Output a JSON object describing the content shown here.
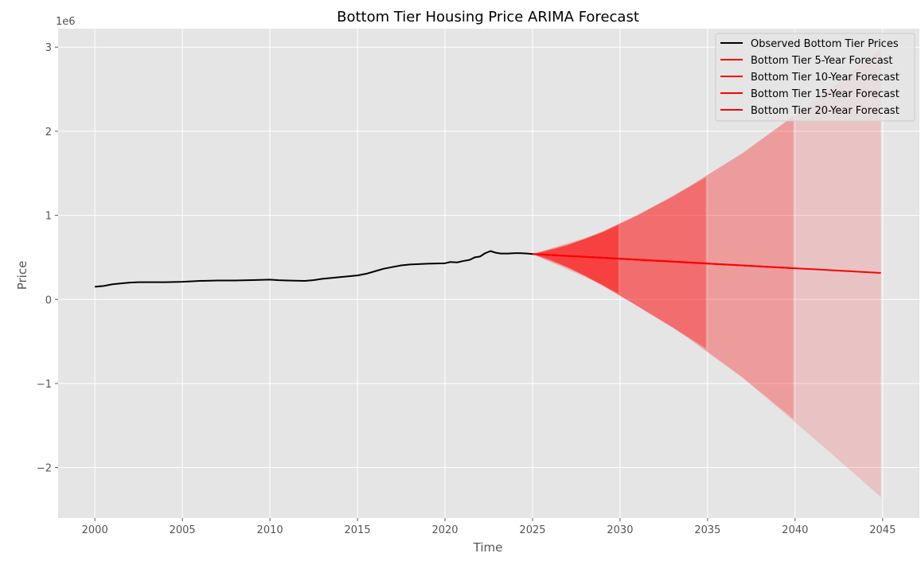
{
  "chart_data": {
    "type": "line",
    "title": "Bottom Tier Housing Price ARIMA Forecast",
    "xlabel": "Time",
    "ylabel": "Price",
    "y_offset_label": "1e6",
    "xlim": [
      1997.9,
      2047.1
    ],
    "ylim": [
      -2.6,
      3.22
    ],
    "x_ticks": [
      2000,
      2005,
      2010,
      2015,
      2020,
      2025,
      2030,
      2035,
      2040,
      2045
    ],
    "y_ticks": [
      -2,
      -1,
      0,
      1,
      2,
      3
    ],
    "y_tick_labels": [
      "−2",
      "−1",
      "0",
      "1",
      "2",
      "3"
    ],
    "grid": true,
    "legend_position": "top-right",
    "colors": {
      "background": "#e5e5e5",
      "grid": "#ffffff",
      "observed": "#000000",
      "forecast": "#ff0000",
      "band": "#ff0000"
    },
    "observed": {
      "name": "Observed Bottom Tier Prices",
      "x": [
        2000,
        2000.5,
        2001,
        2001.5,
        2002,
        2002.5,
        2003,
        2004,
        2005,
        2006,
        2007,
        2008,
        2009,
        2010,
        2010.5,
        2011,
        2012,
        2012.5,
        2013,
        2014,
        2015,
        2015.5,
        2016,
        2016.5,
        2017,
        2017.5,
        2018,
        2019,
        2020,
        2020.3,
        2020.7,
        2021,
        2021.4,
        2021.7,
        2022,
        2022.3,
        2022.6,
        2022.9,
        2023.2,
        2023.6,
        2024,
        2024.3,
        2024.7,
        2025
      ],
      "y": [
        0.15,
        0.16,
        0.18,
        0.19,
        0.2,
        0.205,
        0.205,
        0.205,
        0.21,
        0.22,
        0.225,
        0.225,
        0.23,
        0.235,
        0.228,
        0.225,
        0.22,
        0.23,
        0.245,
        0.265,
        0.285,
        0.305,
        0.335,
        0.365,
        0.385,
        0.405,
        0.415,
        0.425,
        0.43,
        0.445,
        0.44,
        0.455,
        0.47,
        0.5,
        0.51,
        0.55,
        0.575,
        0.555,
        0.545,
        0.545,
        0.55,
        0.55,
        0.545,
        0.54
      ]
    },
    "forecasts": [
      {
        "name": "Bottom Tier 5-Year Forecast",
        "x": [
          2025,
          2029.9
        ],
        "y": [
          0.54,
          0.485
        ],
        "upper": [
          [
            2025,
            0.54
          ],
          [
            2026,
            0.585
          ],
          [
            2027,
            0.645
          ],
          [
            2028,
            0.72
          ],
          [
            2029,
            0.8
          ],
          [
            2029.9,
            0.885
          ]
        ],
        "lower": [
          [
            2025,
            0.54
          ],
          [
            2026,
            0.475
          ],
          [
            2027,
            0.385
          ],
          [
            2028,
            0.28
          ],
          [
            2029,
            0.17
          ],
          [
            2029.9,
            0.075
          ]
        ],
        "band_opacity": 0.4
      },
      {
        "name": "Bottom Tier 10-Year Forecast",
        "x": [
          2025,
          2034.9
        ],
        "y": [
          0.54,
          0.43
        ],
        "upper": [
          [
            2025,
            0.54
          ],
          [
            2027,
            0.645
          ],
          [
            2029,
            0.8
          ],
          [
            2031,
            1.0
          ],
          [
            2033,
            1.22
          ],
          [
            2034.9,
            1.45
          ]
        ],
        "lower": [
          [
            2025,
            0.54
          ],
          [
            2027,
            0.385
          ],
          [
            2029,
            0.17
          ],
          [
            2031,
            -0.08
          ],
          [
            2033,
            -0.33
          ],
          [
            2034.9,
            -0.58
          ]
        ],
        "band_opacity": 0.3
      },
      {
        "name": "Bottom Tier 15-Year Forecast",
        "x": [
          2025,
          2039.9
        ],
        "y": [
          0.54,
          0.37
        ],
        "upper": [
          [
            2025,
            0.54
          ],
          [
            2028,
            0.72
          ],
          [
            2031,
            1.0
          ],
          [
            2034,
            1.35
          ],
          [
            2037,
            1.74
          ],
          [
            2039.9,
            2.18
          ]
        ],
        "lower": [
          [
            2025,
            0.54
          ],
          [
            2028,
            0.28
          ],
          [
            2031,
            -0.08
          ],
          [
            2034,
            -0.47
          ],
          [
            2037,
            -0.93
          ],
          [
            2039.9,
            -1.42
          ]
        ],
        "band_opacity": 0.2
      },
      {
        "name": "Bottom Tier 20-Year Forecast",
        "x": [
          2025,
          2044.9
        ],
        "y": [
          0.54,
          0.315
        ],
        "upper": [
          [
            2025,
            0.54
          ],
          [
            2029,
            0.8
          ],
          [
            2033,
            1.22
          ],
          [
            2037,
            1.74
          ],
          [
            2041,
            2.34
          ],
          [
            2044.9,
            2.98
          ]
        ],
        "lower": [
          [
            2025,
            0.54
          ],
          [
            2029,
            0.17
          ],
          [
            2033,
            -0.33
          ],
          [
            2037,
            -0.93
          ],
          [
            2041,
            -1.64
          ],
          [
            2044.9,
            -2.35
          ]
        ],
        "band_opacity": 0.15
      }
    ]
  }
}
